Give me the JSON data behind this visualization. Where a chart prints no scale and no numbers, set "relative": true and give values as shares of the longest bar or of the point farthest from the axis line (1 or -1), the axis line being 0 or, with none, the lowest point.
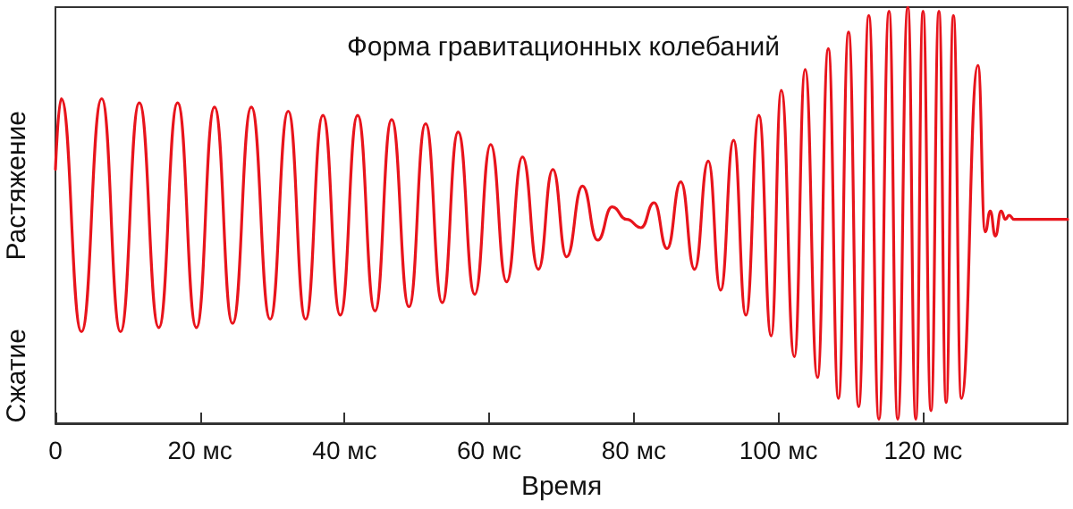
{
  "chart_data": {
    "type": "line",
    "title": "Форма гравитационных колебаний",
    "xlabel": "Время",
    "annotations": [
      "Растяжение",
      "Сжатие"
    ],
    "relative": true,
    "grid": false,
    "marker": "none",
    "line_style": "solid",
    "xlim": [
      0,
      140
    ],
    "xticks": [
      0,
      {
        "value": 20,
        "label": "20 мс"
      },
      {
        "value": 40,
        "label": "40 мс"
      },
      {
        "value": 60,
        "label": "60 мс"
      },
      {
        "value": 80,
        "label": "80 мс"
      },
      {
        "value": 100,
        "label": "100 мс"
      },
      {
        "value": 120,
        "label": "120 мс"
      }
    ],
    "series": [
      {
        "color": "#e8141c",
        "x": [
          0,
          0.8,
          3.6,
          6.4,
          9.0,
          11.6,
          14.3,
          16.9,
          19.5,
          22.0,
          24.5,
          27.1,
          29.7,
          32.2,
          34.6,
          37.0,
          39.4,
          41.8,
          44.2,
          46.5,
          48.9,
          51.2,
          53.5,
          55.7,
          58.0,
          60.2,
          62.4,
          64.6,
          66.8,
          68.8,
          70.7,
          72.9,
          75.0,
          77.0,
          79.0,
          81.0,
          82.8,
          84.6,
          86.5,
          88.4,
          90.3,
          92.0,
          93.8,
          95.5,
          97.3,
          99.0,
          100.4,
          102.2,
          103.7,
          105.4,
          106.9,
          108.3,
          109.7,
          111.1,
          112.5,
          113.9,
          115.3,
          116.5,
          117.9,
          119.0,
          120.0,
          121.1,
          122.2,
          123.2,
          124.2,
          125.3,
          127.6,
          128.6,
          129.3,
          130.0,
          130.8,
          131.4,
          131.9,
          132.6,
          140.0
        ],
        "values": [
          0.61,
          0.78,
          0.22,
          0.78,
          0.22,
          0.77,
          0.23,
          0.77,
          0.23,
          0.76,
          0.24,
          0.76,
          0.25,
          0.75,
          0.25,
          0.74,
          0.26,
          0.74,
          0.27,
          0.73,
          0.28,
          0.72,
          0.29,
          0.7,
          0.31,
          0.67,
          0.34,
          0.64,
          0.37,
          0.61,
          0.4,
          0.57,
          0.44,
          0.52,
          0.49,
          0.47,
          0.53,
          0.42,
          0.58,
          0.37,
          0.63,
          0.32,
          0.68,
          0.26,
          0.74,
          0.21,
          0.8,
          0.16,
          0.85,
          0.11,
          0.9,
          0.06,
          0.94,
          0.04,
          0.98,
          0.01,
          0.99,
          0.01,
          1.0,
          0.01,
          0.99,
          0.03,
          0.99,
          0.05,
          0.98,
          0.06,
          0.86,
          0.46,
          0.51,
          0.45,
          0.51,
          0.49,
          0.5,
          0.49,
          0.49
        ]
      }
    ]
  }
}
